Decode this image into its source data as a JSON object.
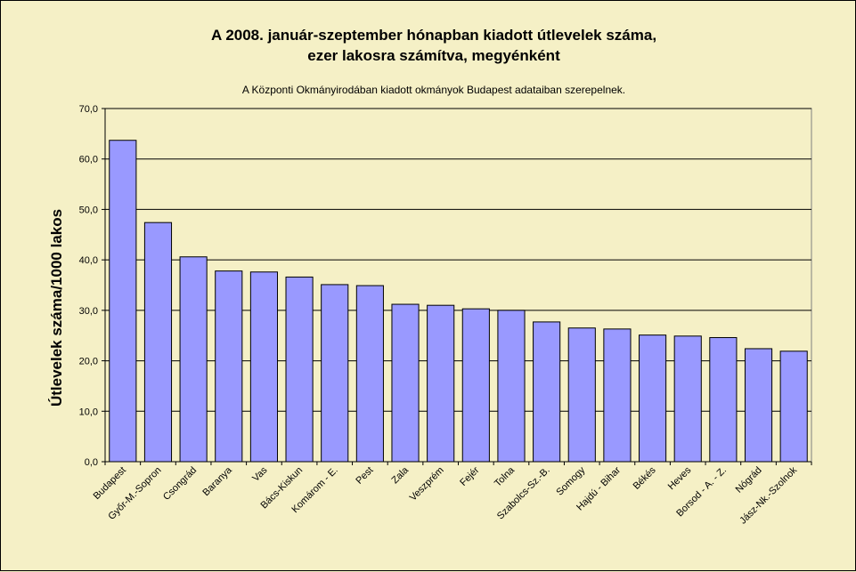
{
  "chart_data": {
    "type": "bar",
    "title": "A 2008. január-szeptember hónapban kiadott útlevelek száma,",
    "title_line2": "ezer lakosra számítva, megyénként",
    "subtitle": "A Központi Okmányirodában kiadott okmányok Budapest adataiban szerepelnek.",
    "xlabel": "",
    "ylabel": "Útlevelek száma/1000 lakos",
    "ylim": [
      0,
      70
    ],
    "yticks": [
      "0,0",
      "10,0",
      "20,0",
      "30,0",
      "40,0",
      "50,0",
      "60,0",
      "70,0"
    ],
    "grid": true,
    "legend": "none",
    "categories": [
      "Budapest",
      "Győr-M.-Sopron",
      "Csongrád",
      "Baranya",
      "Vas",
      "Bács-Kiskun",
      "Komárom - E.",
      "Pest",
      "Zala",
      "Veszprém",
      "Fejér",
      "Tolna",
      "Szabolcs-Sz.-B.",
      "Somogy",
      "Hajdú - Bihar",
      "Békés",
      "Heves",
      "Borsod - A. - Z.",
      "Nógrád",
      "Jász-Nk.-Szolnok"
    ],
    "values": [
      63.7,
      47.4,
      40.6,
      37.8,
      37.6,
      36.6,
      35.1,
      34.9,
      31.2,
      31.0,
      30.3,
      30.0,
      27.7,
      26.5,
      26.3,
      25.1,
      24.9,
      24.6,
      22.4,
      21.9
    ],
    "colors": {
      "background": "#f5f0c6",
      "bar_fill": "#9999ff",
      "bar_stroke": "#000000",
      "grid": "#000000"
    }
  }
}
